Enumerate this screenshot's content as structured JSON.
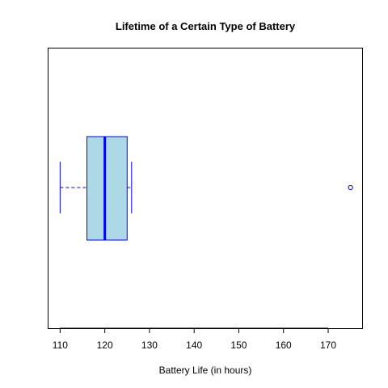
{
  "chart_data": {
    "type": "boxplot",
    "orientation": "horizontal",
    "title": "Lifetime of a Certain Type of Battery",
    "xlabel": "Battery Life (in hours)",
    "ylabel": "",
    "xlim": [
      107.4,
      177.6
    ],
    "ticks": [
      110,
      120,
      130,
      140,
      150,
      160,
      170
    ],
    "tick_labels": [
      "110",
      "120",
      "130",
      "140",
      "150",
      "160",
      "170"
    ],
    "box": {
      "whisker_low": 110,
      "q1": 116,
      "median": 120,
      "q3": 125,
      "whisker_high": 126,
      "outliers": [
        175
      ]
    },
    "colors": {
      "box_fill": "#add8e6",
      "box_border": "#0000ff",
      "median": "#0000ff",
      "whisker": "#0000ff",
      "outlier": "#0000ff"
    },
    "grid": false,
    "legend": "none"
  }
}
